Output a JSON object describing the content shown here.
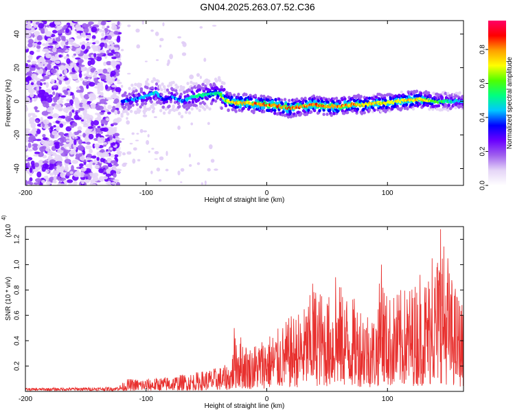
{
  "title": "GN04.2025.263.07.52.C36",
  "chart_data": [
    {
      "type": "heatmap",
      "title": "GN04.2025.263.07.52.C36",
      "xlabel": "Height of straight line (km)",
      "ylabel": "Frequency (Hz)",
      "xlim": [
        -200,
        163
      ],
      "ylim": [
        -50,
        48
      ],
      "x_ticks": [
        -200,
        -100,
        0,
        100
      ],
      "y_ticks": [
        -40,
        -20,
        0,
        20,
        40
      ],
      "colorbar": {
        "label": "Normalized spectral amplitude",
        "range": [
          0,
          0.97
        ],
        "ticks": [
          0.0,
          0.2,
          0.4,
          0.6,
          0.8
        ],
        "tick_labels": [
          "0.0",
          "0.2",
          "0.4",
          "0.6",
          "0.8"
        ],
        "colors": [
          "#ffffff",
          "#e5d5f7",
          "#a060ee",
          "#6a00ff",
          "#0000ff",
          "#00c8ff",
          "#00ff80",
          "#50ff00",
          "#ffff00",
          "#ffa000",
          "#ff0000",
          "#ff0066"
        ]
      },
      "noise_region_km": [
        -200,
        -122
      ],
      "ridge": {
        "x": [
          -120,
          -110,
          -100,
          -92,
          -85,
          -78,
          -70,
          -60,
          -50,
          -40,
          -33,
          -25,
          -15,
          -5,
          0,
          10,
          20,
          30,
          40,
          50,
          60,
          70,
          80,
          90,
          100,
          110,
          120,
          130,
          140,
          150,
          160,
          163
        ],
        "y": [
          0,
          1,
          3,
          5,
          1,
          3,
          0,
          3,
          4,
          5,
          0,
          -1,
          -1,
          -2,
          -2,
          -3,
          -4,
          -3,
          -2,
          -3,
          -3,
          -2,
          -2,
          -1,
          -1,
          0,
          1,
          1,
          0,
          0,
          0,
          0
        ],
        "amplitude": [
          0.45,
          0.5,
          0.55,
          0.55,
          0.45,
          0.5,
          0.5,
          0.6,
          0.6,
          0.65,
          0.85,
          0.9,
          0.9,
          0.95,
          0.95,
          0.95,
          0.95,
          0.92,
          0.95,
          0.95,
          0.93,
          0.93,
          0.9,
          0.85,
          0.85,
          0.85,
          0.9,
          0.85,
          0.7,
          0.6,
          0.55,
          0.55
        ]
      },
      "colorbar_label_text": "Normalized spectral amplitude"
    },
    {
      "type": "line",
      "xlabel": "Height of straight line (km)",
      "ylabel": "SNR (10 * v/v)",
      "y_multiplier": "(x10",
      "y_multiplier_exp": "4",
      "xlim": [
        -200,
        163
      ],
      "ylim": [
        0,
        1.3
      ],
      "x_ticks": [
        -200,
        -100,
        0,
        100
      ],
      "y_ticks": [
        0.2,
        0.4,
        0.6,
        0.8,
        1.0,
        1.2
      ],
      "y_tick_labels": [
        "0.2",
        "0.4",
        "0.6",
        "0.8",
        "1.0",
        "1.2"
      ],
      "series": [
        {
          "name": "SNR",
          "color": "#e8302e",
          "envelope_x": [
            -200,
            -125,
            -115,
            -100,
            -80,
            -60,
            -45,
            -30,
            -25,
            -15,
            0,
            10,
            20,
            30,
            40,
            50,
            60,
            70,
            80,
            90,
            95,
            100,
            110,
            120,
            130,
            140,
            145,
            150,
            160,
            163
          ],
          "envelope_top": [
            0.02,
            0.03,
            0.1,
            0.1,
            0.12,
            0.15,
            0.18,
            0.22,
            0.5,
            0.35,
            0.45,
            0.5,
            0.6,
            0.65,
            0.85,
            0.75,
            0.85,
            0.75,
            0.7,
            0.6,
            1.0,
            0.75,
            0.8,
            0.85,
            0.9,
            1.05,
            1.28,
            1.0,
            0.75,
            0.68
          ],
          "spike_points": [
            [
              -27,
              0.5
            ],
            [
              38,
              0.85
            ],
            [
              57,
              0.9
            ],
            [
              95,
              1.0
            ],
            [
              127,
              0.92
            ],
            [
              137,
              1.05
            ],
            [
              144,
              1.28
            ],
            [
              150,
              1.05
            ],
            [
              163,
              0.67
            ]
          ]
        }
      ]
    }
  ]
}
